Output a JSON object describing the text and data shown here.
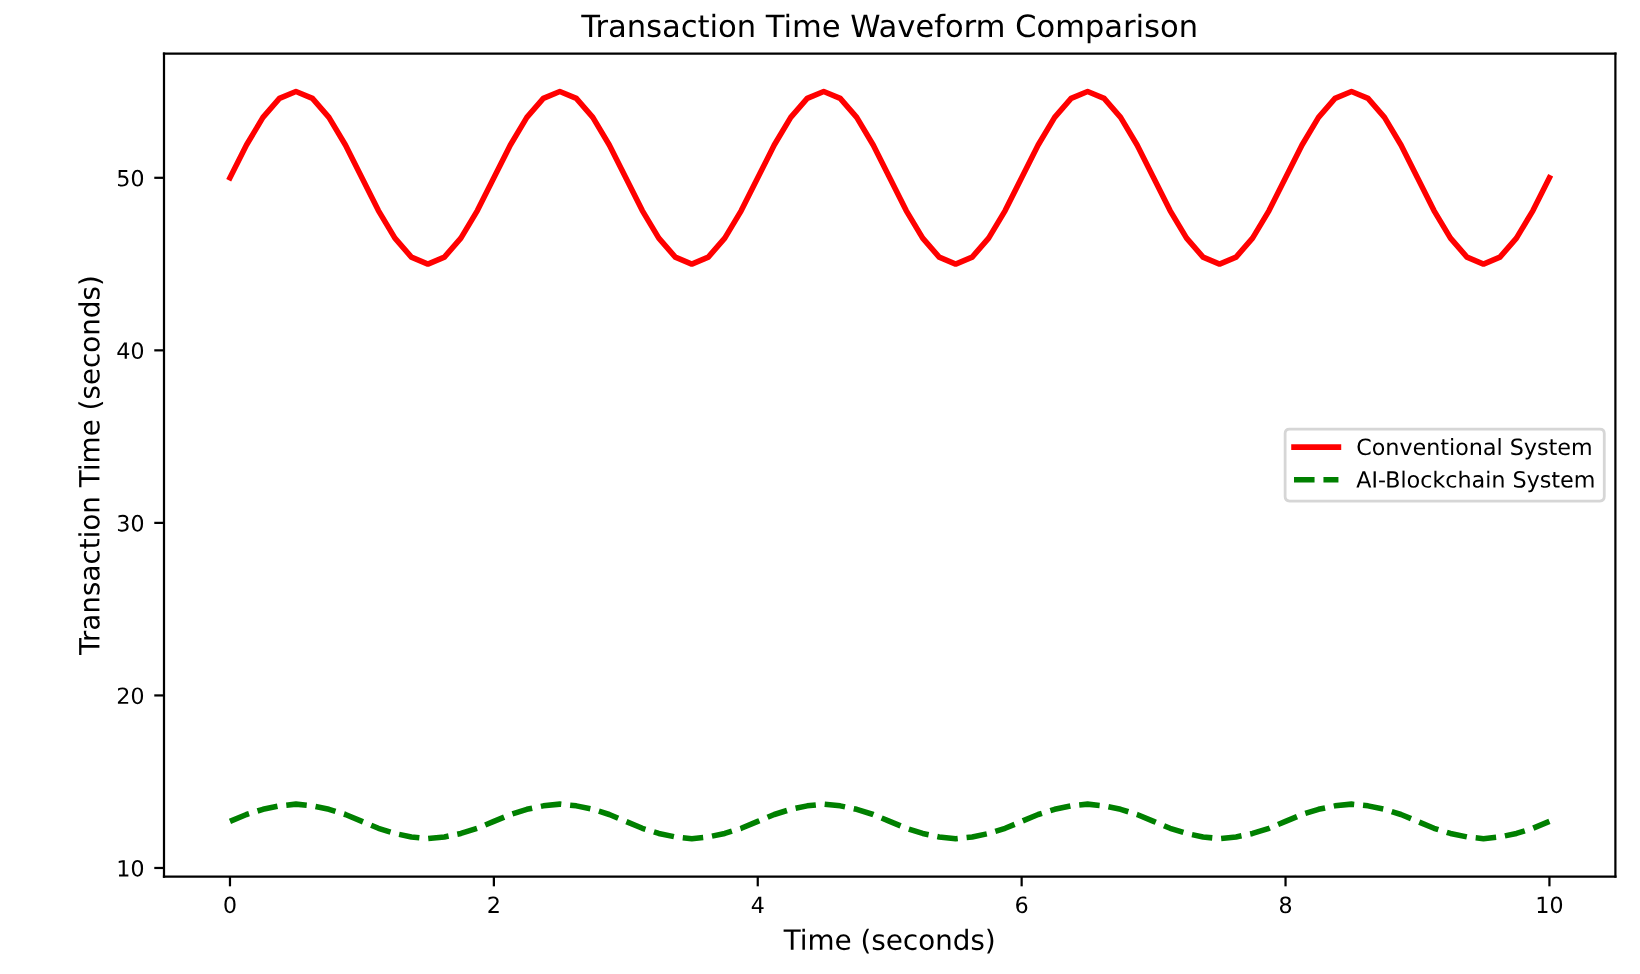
{
  "chart_data": {
    "type": "line",
    "title": "Transaction Time Waveform Comparison",
    "xlabel": "Time (seconds)",
    "ylabel": "Transaction Time (seconds)",
    "x": [
      0,
      0.125,
      0.25,
      0.375,
      0.5,
      0.625,
      0.75,
      0.875,
      1,
      1.125,
      1.25,
      1.375,
      1.5,
      1.625,
      1.75,
      1.875,
      2,
      2.125,
      2.25,
      2.375,
      2.5,
      2.625,
      2.75,
      2.875,
      3,
      3.125,
      3.25,
      3.375,
      3.5,
      3.625,
      3.75,
      3.875,
      4,
      4.125,
      4.25,
      4.375,
      4.5,
      4.625,
      4.75,
      4.875,
      5,
      5.125,
      5.25,
      5.375,
      5.5,
      5.625,
      5.75,
      5.875,
      6,
      6.125,
      6.25,
      6.375,
      6.5,
      6.625,
      6.75,
      6.875,
      7,
      7.125,
      7.25,
      7.375,
      7.5,
      7.625,
      7.75,
      7.875,
      8,
      8.125,
      8.25,
      8.375,
      8.5,
      8.625,
      8.75,
      8.875,
      9,
      9.125,
      9.25,
      9.375,
      9.5,
      9.625,
      9.75,
      9.875,
      10
    ],
    "series": [
      {
        "name": "Conventional System",
        "color": "#ff0000",
        "line_style": "solid",
        "values": [
          50,
          51.9,
          53.5,
          54.6,
          55,
          54.6,
          53.5,
          51.9,
          50,
          48.1,
          46.5,
          45.4,
          45,
          45.4,
          46.5,
          48.1,
          50,
          51.9,
          53.5,
          54.6,
          55,
          54.6,
          53.5,
          51.9,
          50,
          48.1,
          46.5,
          45.4,
          45,
          45.4,
          46.5,
          48.1,
          50,
          51.9,
          53.5,
          54.6,
          55,
          54.6,
          53.5,
          51.9,
          50,
          48.1,
          46.5,
          45.4,
          45,
          45.4,
          46.5,
          48.1,
          50,
          51.9,
          53.5,
          54.6,
          55,
          54.6,
          53.5,
          51.9,
          50,
          48.1,
          46.5,
          45.4,
          45,
          45.4,
          46.5,
          48.1,
          50,
          51.9,
          53.5,
          54.6,
          55,
          54.6,
          53.5,
          51.9,
          50,
          48.1,
          46.5,
          45.4,
          45,
          45.4,
          46.5,
          48.1,
          50
        ]
      },
      {
        "name": "AI-Blockchain System",
        "color": "#008000",
        "line_style": "dashed",
        "values": [
          12.7,
          13.1,
          13.4,
          13.6,
          13.7,
          13.6,
          13.4,
          13.1,
          12.7,
          12.3,
          12,
          11.8,
          11.7,
          11.8,
          12,
          12.3,
          12.7,
          13.1,
          13.4,
          13.6,
          13.7,
          13.6,
          13.4,
          13.1,
          12.7,
          12.3,
          12,
          11.8,
          11.7,
          11.8,
          12,
          12.3,
          12.7,
          13.1,
          13.4,
          13.6,
          13.7,
          13.6,
          13.4,
          13.1,
          12.7,
          12.3,
          12,
          11.8,
          11.7,
          11.8,
          12,
          12.3,
          12.7,
          13.1,
          13.4,
          13.6,
          13.7,
          13.6,
          13.4,
          13.1,
          12.7,
          12.3,
          12,
          11.8,
          11.7,
          11.8,
          12,
          12.3,
          12.7,
          13.1,
          13.4,
          13.6,
          13.7,
          13.6,
          13.4,
          13.1,
          12.7,
          12.3,
          12,
          11.8,
          11.7,
          11.8,
          12,
          12.3,
          12.7
        ]
      }
    ],
    "xlim": [
      -0.5,
      10.5
    ],
    "ylim": [
      9.5,
      57.2
    ],
    "xticks": [
      0,
      2,
      4,
      6,
      8,
      10
    ],
    "yticks": [
      10,
      20,
      30,
      40,
      50
    ],
    "grid": false,
    "legend": "center right",
    "marker": "none"
  }
}
